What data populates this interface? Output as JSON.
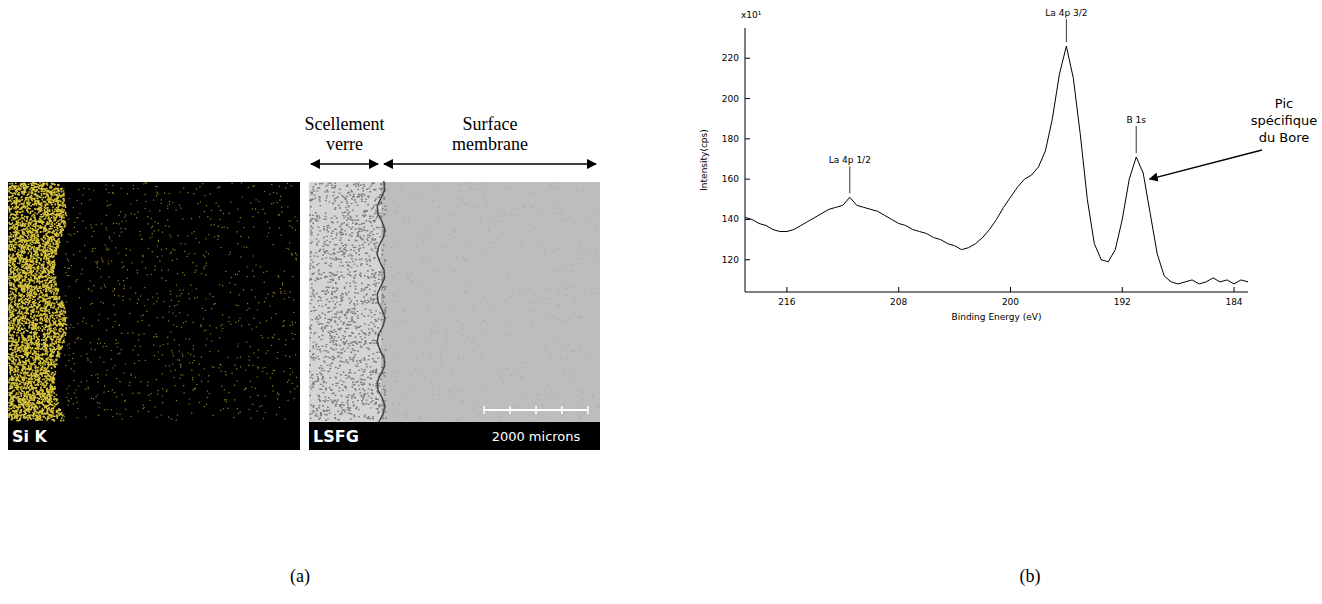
{
  "figure": {
    "panel_a": {
      "label": "(a)",
      "map_label": "Si K",
      "image_label": "LSFG",
      "scale_bar": "2000 microns",
      "region_1": [
        "Scellement",
        "verre"
      ],
      "region_2": [
        "Surface",
        "membrane"
      ]
    },
    "panel_b": {
      "label": "(b)"
    }
  },
  "chart_data": {
    "type": "line",
    "x_label": "Binding Energy (eV)",
    "y_label": "Intensity(cps)",
    "y_scale_label": "x10¹",
    "x": [
      219,
      218.5,
      218,
      217.5,
      217,
      216.5,
      216,
      215.5,
      215,
      214.5,
      214,
      213.5,
      213,
      212.5,
      212,
      211.5,
      211,
      210.5,
      210,
      209.5,
      209,
      208.5,
      208,
      207.5,
      207,
      206.5,
      206,
      205.5,
      205,
      204.5,
      204,
      203.5,
      203,
      202.5,
      202,
      201.5,
      201,
      200.5,
      200,
      199.5,
      199,
      198.5,
      198,
      197.5,
      197,
      196.5,
      196,
      195.5,
      195,
      194.5,
      194,
      193.5,
      193,
      192.5,
      192,
      191.5,
      191,
      190.5,
      190,
      189.5,
      189,
      188.5,
      188,
      187.5,
      187,
      186.5,
      186,
      185.5,
      185,
      184.5,
      184,
      183.5,
      183
    ],
    "values": [
      141,
      140,
      138,
      137,
      135,
      134,
      134,
      135,
      137,
      139,
      141,
      143,
      145,
      146,
      147,
      151,
      147,
      146,
      145,
      144,
      142,
      140,
      138,
      137,
      135,
      134,
      133,
      131,
      130,
      128,
      127,
      125,
      126,
      128,
      131,
      135,
      140,
      146,
      151,
      156,
      160,
      162,
      166,
      174,
      190,
      212,
      226,
      210,
      182,
      150,
      128,
      120,
      119,
      125,
      140,
      160,
      171,
      163,
      143,
      123,
      112,
      109,
      108,
      109,
      110,
      108,
      109,
      111,
      109,
      110,
      108,
      110,
      109
    ],
    "color": "#000000",
    "xlim": [
      219,
      183
    ],
    "ylim": [
      104,
      235
    ],
    "xticks": [
      216,
      208,
      200,
      192,
      184
    ],
    "yticks": [
      120,
      140,
      160,
      180,
      200,
      220
    ],
    "grid": false,
    "annotations": [
      {
        "text": "La 4p 1/2",
        "x": 211.5,
        "y": 151
      },
      {
        "text": "La 4p 3/2",
        "x": 196,
        "y": 226
      },
      {
        "text": "B 1s",
        "x": 191,
        "y": 171
      }
    ],
    "callout": {
      "lines": [
        "Pic",
        "spécifique",
        "du Bore"
      ],
      "x": 190.4,
      "y": 160
    }
  }
}
